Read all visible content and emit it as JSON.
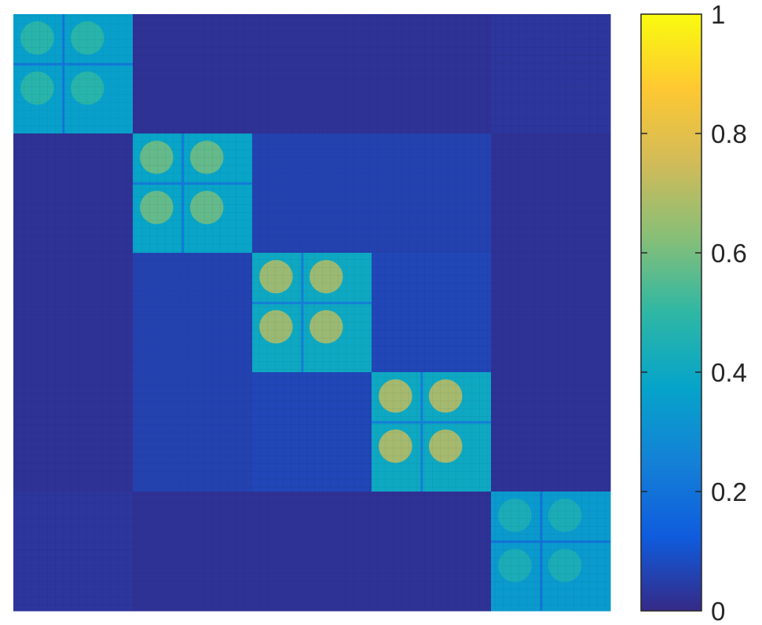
{
  "chart_data": {
    "type": "heatmap",
    "title": "",
    "xlabel": "",
    "ylabel": "",
    "matrix_size": 5,
    "block_labels": [],
    "values": [
      [
        0.36,
        0.02,
        0.02,
        0.02,
        0.03
      ],
      [
        0.02,
        0.38,
        0.06,
        0.06,
        0.02
      ],
      [
        0.02,
        0.06,
        0.4,
        0.07,
        0.02
      ],
      [
        0.02,
        0.06,
        0.07,
        0.4,
        0.02
      ],
      [
        0.03,
        0.02,
        0.02,
        0.02,
        0.34
      ]
    ],
    "peak_values": [
      0.5,
      0.6,
      0.7,
      0.72,
      0.45
    ],
    "colormap": "parula",
    "colormap_stops": [
      "#352a87",
      "#0f5cdd",
      "#1481d6",
      "#06a4ca",
      "#2eb7a4",
      "#87bf77",
      "#d1bb59",
      "#fec832",
      "#f9fb0e"
    ],
    "colorbar": {
      "ticks": [
        "0",
        "0.2",
        "0.4",
        "0.6",
        "0.8",
        "1"
      ],
      "tick_values": [
        0,
        0.2,
        0.4,
        0.6,
        0.8,
        1
      ],
      "clim": [
        0,
        1
      ],
      "position": "right"
    },
    "grid": false,
    "legend": "none"
  }
}
